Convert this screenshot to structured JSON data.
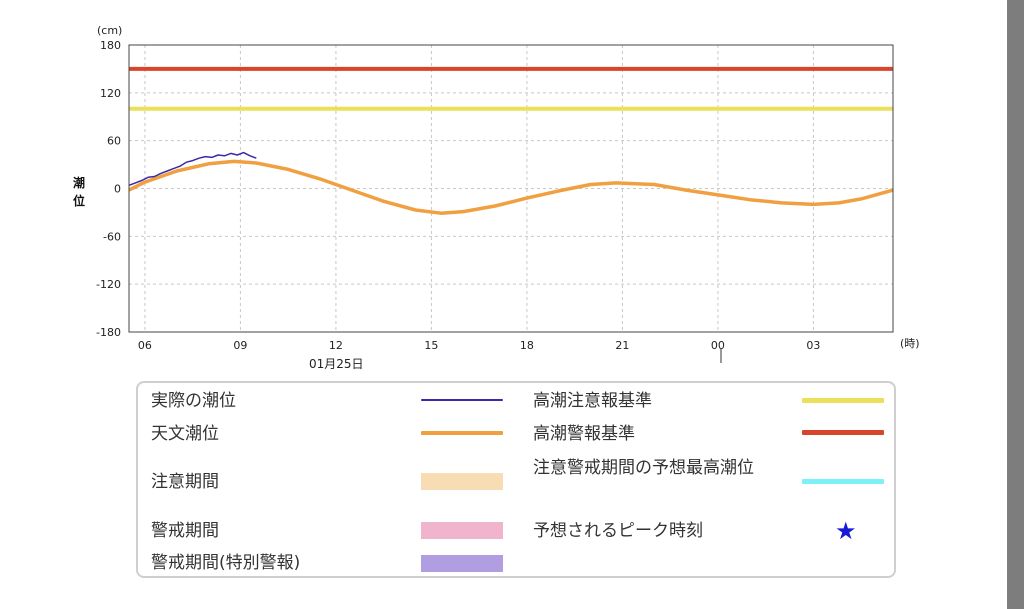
{
  "chart_data": {
    "type": "line",
    "y_unit": "(cm)",
    "ylabel": "潮位",
    "x_unit": "(時)",
    "date_label": "01月25日",
    "ylim": [
      -180,
      180
    ],
    "yticks": [
      180,
      120,
      60,
      0,
      -60,
      -120,
      -180
    ],
    "xlim_hours": [
      5.5,
      29.5
    ],
    "xticks": [
      {
        "hour": 6,
        "label": "06"
      },
      {
        "hour": 9,
        "label": "09"
      },
      {
        "hour": 12,
        "label": "12"
      },
      {
        "hour": 15,
        "label": "15"
      },
      {
        "hour": 18,
        "label": "18"
      },
      {
        "hour": 21,
        "label": "21"
      },
      {
        "hour": 24,
        "label": "00"
      },
      {
        "hour": 27,
        "label": "03"
      }
    ],
    "grid": true,
    "reference_lines": [
      {
        "name": "高潮警報基準",
        "value": 150,
        "color": "#d9452b"
      },
      {
        "name": "高潮注意報基準",
        "value": 100,
        "color": "#ece05a"
      }
    ],
    "series": [
      {
        "name": "天文潮位",
        "color": "#f0a040",
        "hours": [
          5.5,
          6,
          7,
          8,
          8.8,
          9.5,
          10.5,
          11.5,
          12.5,
          13.5,
          14.5,
          15.3,
          16,
          17,
          18,
          19,
          20,
          20.8,
          22,
          23,
          24,
          25,
          26,
          27,
          27.8,
          28.5,
          29.5
        ],
        "values": [
          -2,
          8,
          22,
          31,
          34,
          32,
          24,
          12,
          -2,
          -16,
          -27,
          -31,
          -29,
          -22,
          -12,
          -3,
          5,
          7,
          5,
          -2,
          -8,
          -14,
          -18,
          -20,
          -18,
          -13,
          -2
        ]
      },
      {
        "name": "実際の潮位",
        "color": "#3a2aa8",
        "hours": [
          5.5,
          5.7,
          5.9,
          6.1,
          6.3,
          6.5,
          6.7,
          6.9,
          7.1,
          7.3,
          7.5,
          7.7,
          7.9,
          8.1,
          8.3,
          8.5,
          8.7,
          8.9,
          9.1,
          9.3,
          9.5
        ],
        "values": [
          4,
          7,
          10,
          14,
          15,
          19,
          22,
          25,
          28,
          33,
          35,
          38,
          40,
          39,
          42,
          41,
          44,
          42,
          45,
          41,
          38
        ]
      }
    ]
  },
  "legend": {
    "items": [
      {
        "label": "実際の潮位",
        "color": "#3a2aa8",
        "kind": "line"
      },
      {
        "label": "天文潮位",
        "color": "#f0a040",
        "kind": "line"
      },
      {
        "label": "注意期間",
        "color": "#f8dcb4",
        "kind": "box"
      },
      {
        "label": "警戒期間",
        "color": "#f0b4cc",
        "kind": "box"
      },
      {
        "label": "警戒期間(特別警報)",
        "color": "#b09ee0",
        "kind": "box"
      },
      {
        "label": "高潮注意報基準",
        "color": "#ece05a",
        "kind": "line"
      },
      {
        "label": "高潮警報基準",
        "color": "#d9452b",
        "kind": "line"
      },
      {
        "label": "注意警戒期間の予想最高潮位",
        "color": "#7ef0f8",
        "kind": "line"
      },
      {
        "label": "予想されるピーク時刻",
        "color": "#1818d8",
        "kind": "star",
        "symbol": "★"
      }
    ]
  }
}
